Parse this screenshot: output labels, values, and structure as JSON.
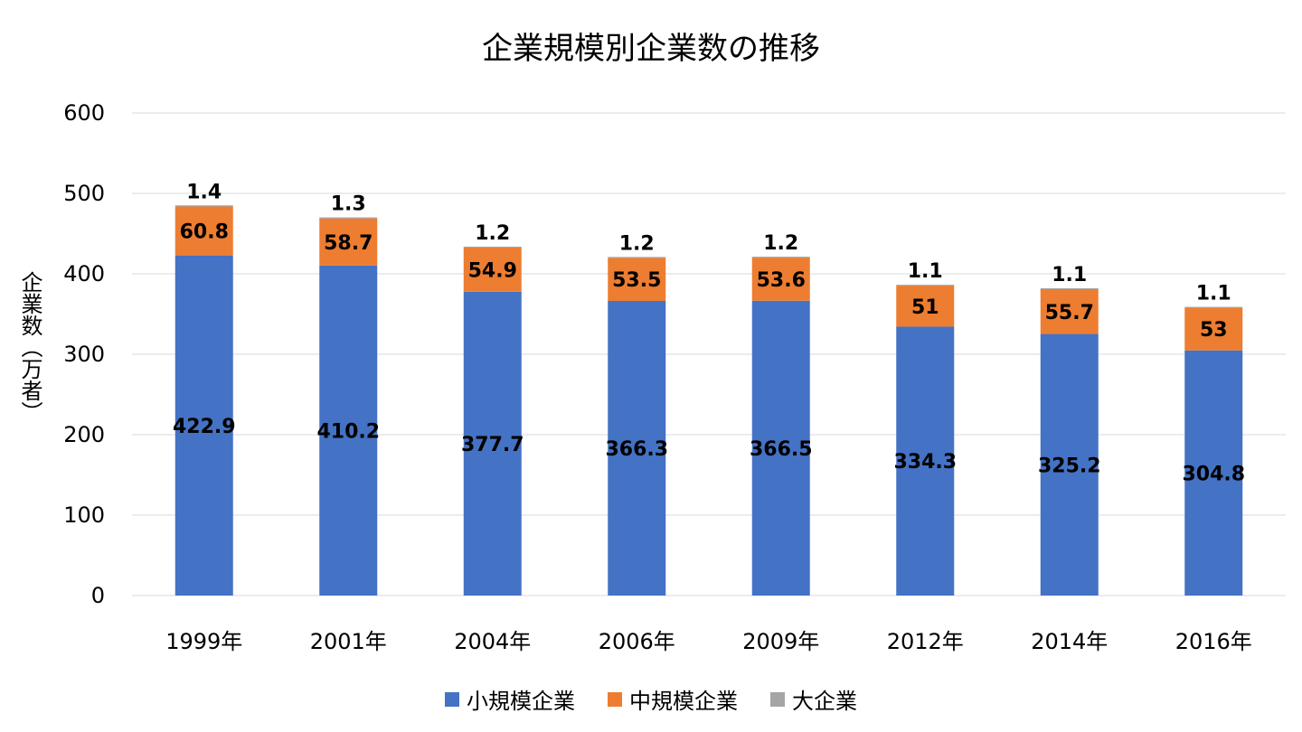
{
  "chart_data": {
    "type": "bar",
    "stacked": true,
    "title": "企業規模別企業数の推移",
    "xlabel": "",
    "ylabel": "企業数（万者）",
    "ylim": [
      0,
      600
    ],
    "yticks": [
      0,
      100,
      200,
      300,
      400,
      500,
      600
    ],
    "grid": true,
    "legend_position": "bottom",
    "categories": [
      "1999年",
      "2001年",
      "2004年",
      "2006年",
      "2009年",
      "2012年",
      "2014年",
      "2016年"
    ],
    "series": [
      {
        "name": "小規模企業",
        "color": "#4472c4",
        "values": [
          422.9,
          410.2,
          377.7,
          366.3,
          366.5,
          334.3,
          325.2,
          304.8
        ]
      },
      {
        "name": "中規模企業",
        "color": "#ed7d31",
        "values": [
          60.8,
          58.7,
          54.9,
          53.5,
          53.6,
          51,
          55.7,
          53
        ]
      },
      {
        "name": "大企業",
        "color": "#a5a5a5",
        "values": [
          1.4,
          1.3,
          1.2,
          1.2,
          1.2,
          1.1,
          1.1,
          1.1
        ]
      }
    ]
  }
}
